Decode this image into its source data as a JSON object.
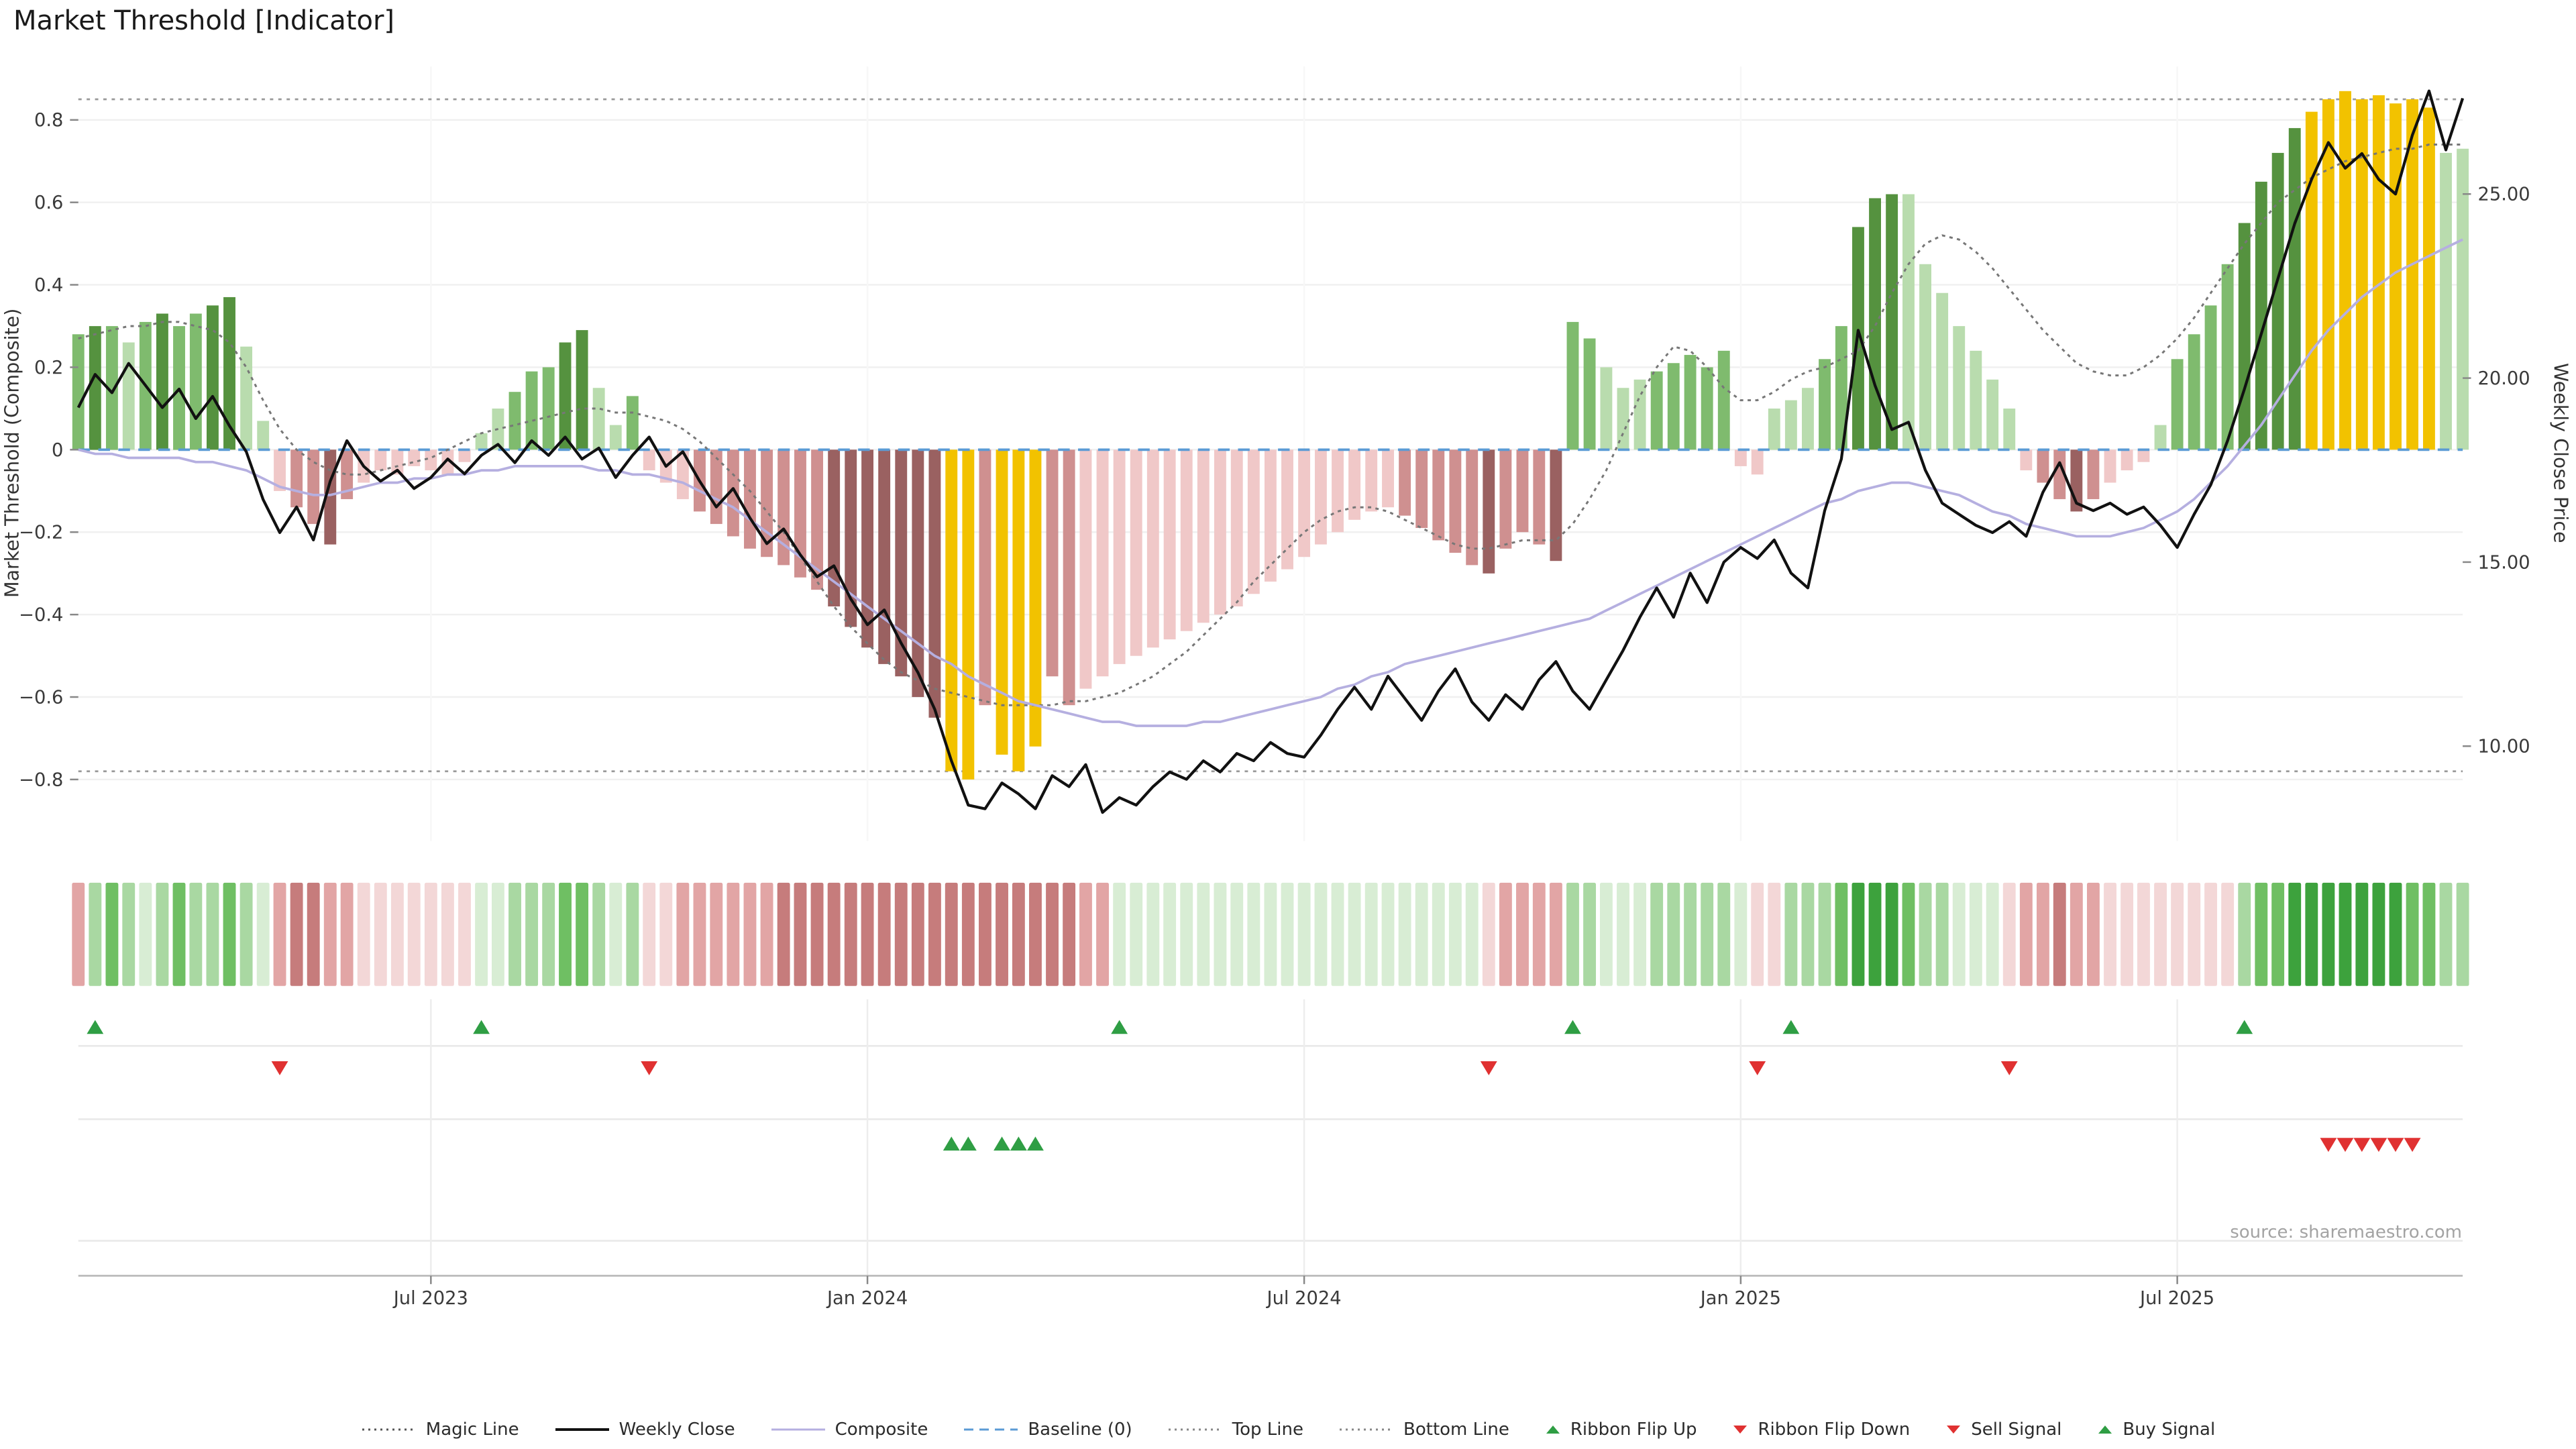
{
  "title": "Market Threshold [Indicator]",
  "source": "source: sharemaestro.com",
  "palette": {
    "bars": {
      "g1": "#b9dcae",
      "g2": "#7fbb6e",
      "g3": "#55923f",
      "p1": "#f0c8c8",
      "p2": "#cf9090",
      "p3": "#9a6161",
      "y": "#f2c200"
    },
    "ribbon": {
      "r1": "#f3d7d7",
      "r2": "#e2a5a5",
      "r3": "#c67c7c",
      "g1": "#d8edd4",
      "g2": "#a9d8a2",
      "g3": "#6fbf63",
      "g4": "#3da23d"
    },
    "signal_up": "#2f9e44",
    "signal_down": "#e03131",
    "baseline": "#5b9bd5",
    "weekly_close": "#111111",
    "composite_line": "#b5afe0",
    "magic_line": "#777777",
    "guide_line": "#999999"
  },
  "chart_data": {
    "type": "bar",
    "title": "Market Threshold [Indicator]",
    "top_line": 0.85,
    "bottom_line": -0.78,
    "baseline": 0,
    "left_axis": {
      "label": "Market Threshold (Composite)",
      "range": [
        -0.95,
        0.93
      ],
      "ticks": [
        {
          "v": 0.8,
          "label": "0.8"
        },
        {
          "v": 0.6,
          "label": "0.6"
        },
        {
          "v": 0.4,
          "label": "0.4"
        },
        {
          "v": 0.2,
          "label": "0.2"
        },
        {
          "v": 0,
          "label": "0"
        },
        {
          "v": -0.2,
          "label": "−0.2"
        },
        {
          "v": -0.4,
          "label": "−0.4"
        },
        {
          "v": -0.6,
          "label": "−0.6"
        },
        {
          "v": -0.8,
          "label": "−0.8"
        }
      ]
    },
    "right_axis": {
      "label": "Weekly Close Price",
      "range": [
        7.4,
        28.5
      ],
      "ticks": [
        {
          "v": 25,
          "label": "25.00"
        },
        {
          "v": 20,
          "label": "20.00"
        },
        {
          "v": 15,
          "label": "15.00"
        },
        {
          "v": 10,
          "label": "10.00"
        }
      ]
    },
    "x_ticks": [
      {
        "i": 21,
        "label": "Jul 2023"
      },
      {
        "i": 47,
        "label": "Jan 2024"
      },
      {
        "i": 73,
        "label": "Jul 2024"
      },
      {
        "i": 99,
        "label": "Jan 2025"
      },
      {
        "i": 125,
        "label": "Jul 2025"
      }
    ],
    "bars": {
      "values": [
        0.28,
        0.3,
        0.3,
        0.26,
        0.31,
        0.33,
        0.3,
        0.33,
        0.35,
        0.37,
        0.25,
        0.07,
        -0.1,
        -0.14,
        -0.18,
        -0.23,
        -0.12,
        -0.08,
        -0.05,
        -0.06,
        -0.04,
        -0.05,
        -0.06,
        -0.03,
        0.04,
        0.1,
        0.14,
        0.19,
        0.2,
        0.26,
        0.29,
        0.15,
        0.06,
        0.13,
        -0.05,
        -0.08,
        -0.12,
        -0.15,
        -0.18,
        -0.21,
        -0.24,
        -0.26,
        -0.28,
        -0.31,
        -0.34,
        -0.38,
        -0.43,
        -0.48,
        -0.52,
        -0.55,
        -0.6,
        -0.65,
        -0.78,
        -0.8,
        -0.62,
        -0.74,
        -0.78,
        -0.72,
        -0.55,
        -0.62,
        -0.58,
        -0.55,
        -0.52,
        -0.5,
        -0.48,
        -0.46,
        -0.44,
        -0.42,
        -0.4,
        -0.38,
        -0.35,
        -0.32,
        -0.29,
        -0.26,
        -0.23,
        -0.2,
        -0.17,
        -0.15,
        -0.14,
        -0.16,
        -0.19,
        -0.22,
        -0.25,
        -0.28,
        -0.3,
        -0.24,
        -0.2,
        -0.23,
        -0.27,
        0.31,
        0.27,
        0.2,
        0.15,
        0.17,
        0.19,
        0.21,
        0.23,
        0.2,
        0.24,
        -0.04,
        -0.06,
        0.1,
        0.12,
        0.15,
        0.22,
        0.3,
        0.54,
        0.61,
        0.62,
        0.62,
        0.45,
        0.38,
        0.3,
        0.24,
        0.17,
        0.1,
        -0.05,
        -0.08,
        -0.12,
        -0.15,
        -0.12,
        -0.08,
        -0.05,
        -0.03,
        0.06,
        0.22,
        0.28,
        0.35,
        0.45,
        0.55,
        0.65,
        0.72,
        0.78,
        0.82,
        0.85,
        0.87,
        0.85,
        0.86,
        0.84,
        0.85,
        0.83,
        0.72,
        0.73
      ],
      "colors": [
        "g2",
        "g3",
        "g2",
        "g1",
        "g2",
        "g3",
        "g2",
        "g2",
        "g3",
        "g3",
        "g1",
        "g1",
        "p1",
        "p2",
        "p2",
        "p3",
        "p2",
        "p1",
        "p1",
        "p1",
        "p1",
        "p1",
        "p1",
        "p1",
        "g1",
        "g1",
        "g2",
        "g2",
        "g2",
        "g3",
        "g3",
        "g1",
        "g1",
        "g2",
        "p1",
        "p1",
        "p1",
        "p2",
        "p2",
        "p2",
        "p2",
        "p2",
        "p2",
        "p2",
        "p2",
        "p3",
        "p3",
        "p3",
        "p3",
        "p3",
        "p3",
        "p3",
        "y",
        "y",
        "p2",
        "y",
        "y",
        "y",
        "p2",
        "p2",
        "p1",
        "p1",
        "p1",
        "p1",
        "p1",
        "p1",
        "p1",
        "p1",
        "p1",
        "p1",
        "p1",
        "p1",
        "p1",
        "p1",
        "p1",
        "p1",
        "p1",
        "p1",
        "p1",
        "p2",
        "p2",
        "p2",
        "p2",
        "p2",
        "p3",
        "p2",
        "p2",
        "p2",
        "p3",
        "g2",
        "g2",
        "g1",
        "g1",
        "g1",
        "g2",
        "g2",
        "g2",
        "g2",
        "g2",
        "p1",
        "p1",
        "g1",
        "g1",
        "g1",
        "g2",
        "g2",
        "g3",
        "g3",
        "g3",
        "g1",
        "g1",
        "g1",
        "g1",
        "g1",
        "g1",
        "g1",
        "p1",
        "p2",
        "p2",
        "p3",
        "p2",
        "p1",
        "p1",
        "p1",
        "g1",
        "g2",
        "g2",
        "g2",
        "g2",
        "g3",
        "g3",
        "g3",
        "g3",
        "y",
        "y",
        "y",
        "y",
        "y",
        "y",
        "y",
        "y",
        "g1",
        "g1"
      ]
    },
    "weekly_close": [
      19.2,
      20.1,
      19.6,
      20.4,
      19.8,
      19.2,
      19.7,
      18.9,
      19.5,
      18.7,
      18.0,
      16.7,
      15.8,
      16.5,
      15.6,
      17.2,
      18.3,
      17.6,
      17.2,
      17.5,
      17.0,
      17.3,
      17.8,
      17.4,
      17.9,
      18.2,
      17.7,
      18.3,
      17.9,
      18.4,
      17.8,
      18.1,
      17.3,
      17.9,
      18.4,
      17.6,
      18.0,
      17.2,
      16.5,
      17.0,
      16.2,
      15.5,
      15.9,
      15.2,
      14.6,
      14.9,
      14.0,
      13.3,
      13.7,
      12.8,
      12.0,
      11.0,
      9.6,
      8.4,
      8.3,
      9.0,
      8.7,
      8.3,
      9.2,
      8.9,
      9.5,
      8.2,
      8.6,
      8.4,
      8.9,
      9.3,
      9.1,
      9.6,
      9.3,
      9.8,
      9.6,
      10.1,
      9.8,
      9.7,
      10.3,
      11.0,
      11.6,
      11.0,
      11.9,
      11.3,
      10.7,
      11.5,
      12.1,
      11.2,
      10.7,
      11.4,
      11.0,
      11.8,
      12.3,
      11.5,
      11.0,
      11.8,
      12.6,
      13.5,
      14.3,
      13.5,
      14.7,
      13.9,
      15.0,
      15.4,
      15.1,
      15.6,
      14.7,
      14.3,
      16.4,
      17.8,
      21.3,
      19.8,
      18.6,
      18.8,
      17.5,
      16.6,
      16.3,
      16.0,
      15.8,
      16.1,
      15.7,
      16.9,
      17.7,
      16.6,
      16.4,
      16.6,
      16.3,
      16.5,
      16.0,
      15.4,
      16.3,
      17.1,
      18.3,
      19.7,
      21.2,
      22.7,
      24.2,
      25.4,
      26.4,
      25.7,
      26.1,
      25.4,
      25.0,
      26.6,
      27.8,
      26.2,
      27.6
    ],
    "composite_line": [
      0.0,
      -0.01,
      -0.01,
      -0.02,
      -0.02,
      -0.02,
      -0.02,
      -0.03,
      -0.03,
      -0.04,
      -0.05,
      -0.07,
      -0.09,
      -0.1,
      -0.11,
      -0.11,
      -0.1,
      -0.09,
      -0.08,
      -0.08,
      -0.07,
      -0.07,
      -0.06,
      -0.06,
      -0.05,
      -0.05,
      -0.04,
      -0.04,
      -0.04,
      -0.04,
      -0.04,
      -0.05,
      -0.05,
      -0.06,
      -0.06,
      -0.07,
      -0.08,
      -0.1,
      -0.12,
      -0.14,
      -0.17,
      -0.2,
      -0.23,
      -0.26,
      -0.29,
      -0.32,
      -0.35,
      -0.38,
      -0.41,
      -0.44,
      -0.47,
      -0.5,
      -0.52,
      -0.55,
      -0.57,
      -0.59,
      -0.61,
      -0.62,
      -0.63,
      -0.64,
      -0.65,
      -0.66,
      -0.66,
      -0.67,
      -0.67,
      -0.67,
      -0.67,
      -0.66,
      -0.66,
      -0.65,
      -0.64,
      -0.63,
      -0.62,
      -0.61,
      -0.6,
      -0.58,
      -0.57,
      -0.55,
      -0.54,
      -0.52,
      -0.51,
      -0.5,
      -0.49,
      -0.48,
      -0.47,
      -0.46,
      -0.45,
      -0.44,
      -0.43,
      -0.42,
      -0.41,
      -0.39,
      -0.37,
      -0.35,
      -0.33,
      -0.31,
      -0.29,
      -0.27,
      -0.25,
      -0.23,
      -0.21,
      -0.19,
      -0.17,
      -0.15,
      -0.13,
      -0.12,
      -0.1,
      -0.09,
      -0.08,
      -0.08,
      -0.09,
      -0.1,
      -0.11,
      -0.13,
      -0.15,
      -0.16,
      -0.18,
      -0.19,
      -0.2,
      -0.21,
      -0.21,
      -0.21,
      -0.2,
      -0.19,
      -0.17,
      -0.15,
      -0.12,
      -0.08,
      -0.04,
      0.01,
      0.06,
      0.12,
      0.18,
      0.24,
      0.29,
      0.33,
      0.37,
      0.4,
      0.43,
      0.45,
      0.47,
      0.49,
      0.51
    ],
    "magic_line": [
      0.27,
      0.28,
      0.29,
      0.3,
      0.3,
      0.31,
      0.31,
      0.3,
      0.29,
      0.26,
      0.2,
      0.12,
      0.05,
      0.0,
      -0.03,
      -0.05,
      -0.06,
      -0.06,
      -0.05,
      -0.04,
      -0.03,
      -0.02,
      0.0,
      0.02,
      0.04,
      0.05,
      0.06,
      0.07,
      0.08,
      0.09,
      0.1,
      0.1,
      0.09,
      0.09,
      0.08,
      0.07,
      0.05,
      0.02,
      -0.02,
      -0.06,
      -0.1,
      -0.15,
      -0.2,
      -0.26,
      -0.32,
      -0.38,
      -0.43,
      -0.47,
      -0.51,
      -0.54,
      -0.56,
      -0.58,
      -0.59,
      -0.6,
      -0.61,
      -0.62,
      -0.62,
      -0.62,
      -0.62,
      -0.61,
      -0.61,
      -0.6,
      -0.59,
      -0.57,
      -0.55,
      -0.52,
      -0.49,
      -0.45,
      -0.41,
      -0.37,
      -0.32,
      -0.28,
      -0.24,
      -0.2,
      -0.17,
      -0.15,
      -0.14,
      -0.14,
      -0.15,
      -0.17,
      -0.19,
      -0.21,
      -0.23,
      -0.24,
      -0.24,
      -0.23,
      -0.22,
      -0.22,
      -0.22,
      -0.18,
      -0.12,
      -0.05,
      0.04,
      0.13,
      0.2,
      0.25,
      0.24,
      0.2,
      0.15,
      0.12,
      0.12,
      0.14,
      0.17,
      0.19,
      0.2,
      0.22,
      0.24,
      0.3,
      0.38,
      0.45,
      0.5,
      0.52,
      0.51,
      0.48,
      0.44,
      0.39,
      0.34,
      0.29,
      0.25,
      0.21,
      0.19,
      0.18,
      0.18,
      0.2,
      0.23,
      0.27,
      0.32,
      0.38,
      0.44,
      0.5,
      0.55,
      0.6,
      0.63,
      0.66,
      0.68,
      0.7,
      0.71,
      0.72,
      0.73,
      0.73,
      0.74,
      0.74,
      0.74
    ],
    "ribbon": [
      "r2",
      "g2",
      "g3",
      "g2",
      "g1",
      "g2",
      "g3",
      "g2",
      "g2",
      "g3",
      "g2",
      "g1",
      "r2",
      "r3",
      "r3",
      "r2",
      "r2",
      "r1",
      "r1",
      "r1",
      "r1",
      "r1",
      "r1",
      "r1",
      "g1",
      "g1",
      "g2",
      "g2",
      "g2",
      "g3",
      "g3",
      "g2",
      "g1",
      "g2",
      "r1",
      "r1",
      "r2",
      "r2",
      "r2",
      "r2",
      "r2",
      "r2",
      "r3",
      "r3",
      "r3",
      "r3",
      "r3",
      "r3",
      "r3",
      "r3",
      "r3",
      "r3",
      "r3",
      "r3",
      "r3",
      "r3",
      "r3",
      "r3",
      "r3",
      "r3",
      "r2",
      "r2",
      "g1",
      "g1",
      "g1",
      "g1",
      "g1",
      "g1",
      "g1",
      "g1",
      "g1",
      "g1",
      "g1",
      "g1",
      "g1",
      "g1",
      "g1",
      "g1",
      "g1",
      "g1",
      "g1",
      "g1",
      "g1",
      "g1",
      "r1",
      "r2",
      "r2",
      "r2",
      "r2",
      "g2",
      "g2",
      "g1",
      "g1",
      "g1",
      "g2",
      "g2",
      "g2",
      "g2",
      "g2",
      "g1",
      "r1",
      "r1",
      "g2",
      "g2",
      "g2",
      "g3",
      "g4",
      "g4",
      "g4",
      "g3",
      "g2",
      "g2",
      "g1",
      "g1",
      "g1",
      "r1",
      "r2",
      "r2",
      "r3",
      "r2",
      "r2",
      "r1",
      "r1",
      "r1",
      "r1",
      "r1",
      "r1",
      "r1",
      "r1",
      "g2",
      "g3",
      "g3",
      "g4",
      "g4",
      "g4",
      "g4",
      "g4",
      "g4",
      "g4",
      "g3",
      "g3",
      "g2",
      "g2"
    ],
    "signals": {
      "ribbon_flip_up": [
        1,
        24,
        62,
        89,
        102,
        129
      ],
      "ribbon_flip_down": [
        12,
        34,
        84,
        100,
        115
      ],
      "buy": [
        52,
        53,
        55,
        56,
        57
      ],
      "sell": [
        134,
        135,
        136,
        137,
        138,
        139
      ]
    }
  },
  "legend": [
    {
      "label": "Magic Line",
      "type": "dotted",
      "color": "#555555"
    },
    {
      "label": "Weekly Close",
      "type": "solid",
      "color": "#111111"
    },
    {
      "label": "Composite",
      "type": "solid",
      "color": "#b5afe0"
    },
    {
      "label": "Baseline (0)",
      "type": "dashed",
      "color": "#5b9bd5"
    },
    {
      "label": "Top Line",
      "type": "dotted",
      "color": "#888888"
    },
    {
      "label": "Bottom Line",
      "type": "dotted",
      "color": "#888888"
    },
    {
      "label": "Ribbon Flip Up",
      "type": "tri-up",
      "color": "#2f9e44"
    },
    {
      "label": "Ribbon Flip Down",
      "type": "tri-down",
      "color": "#e03131"
    },
    {
      "label": "Sell Signal",
      "type": "tri-down",
      "color": "#e03131"
    },
    {
      "label": "Buy Signal",
      "type": "tri-up",
      "color": "#2f9e44"
    }
  ]
}
